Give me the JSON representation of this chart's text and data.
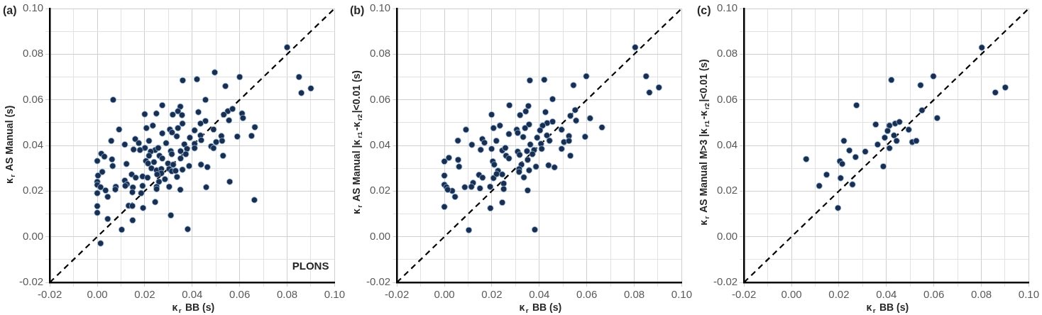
{
  "chart_data": [
    {
      "type": "scatter",
      "title": "(a)",
      "xlabel": "κ$_{r}$ BB (s)",
      "ylabel": "κ$_{r}$ AS Manual (s)",
      "annotations": [
        "PLONS"
      ],
      "xlim": [
        -0.02,
        0.1
      ],
      "ylim": [
        -0.02,
        0.1
      ],
      "xticks": [
        -0.02,
        {
          "value": -0.01,
          "label": null
        },
        {
          "value": 0,
          "label": "0.00"
        },
        {
          "value": 0.01,
          "label": null
        },
        0.02,
        {
          "value": 0.03,
          "label": null
        },
        0.04,
        {
          "value": 0.05,
          "label": null
        },
        0.06,
        {
          "value": 0.07,
          "label": null
        },
        0.08,
        {
          "value": 0.09,
          "label": null
        },
        {
          "value": 0.1,
          "label": "0.10"
        }
      ],
      "yticks": [
        -0.02,
        {
          "value": -0.01,
          "label": null
        },
        {
          "value": 0,
          "label": "0.00"
        },
        {
          "value": 0.01,
          "label": null
        },
        0.02,
        {
          "value": 0.03,
          "label": null
        },
        0.04,
        {
          "value": 0.05,
          "label": null
        },
        0.06,
        {
          "value": 0.07,
          "label": null
        },
        0.08,
        {
          "value": 0.09,
          "label": null
        },
        {
          "value": 0.1,
          "label": "0.10"
        }
      ],
      "grid": true,
      "legend": false,
      "series": [
        {
          "type": "scatter",
          "color": "#1a2e4f",
          "marker": "circle",
          "x": [
            0.08,
            0.085,
            0.086,
            0.09,
            0.0495,
            0.06,
            0.054,
            0.036,
            0.042,
            0.0067,
            0.0456,
            0.0274,
            0.035,
            0.034,
            0.0357,
            0.02,
            0.0249,
            0.0318,
            0.0426,
            0.055,
            0.057,
            0.0533,
            0.061,
            0.0614,
            0.0555,
            0.0456,
            0.0435,
            0.0359,
            0.0234,
            0.0207,
            0.0092,
            0.034,
            0.0306,
            0.0315,
            0.041,
            0.049,
            0.0664,
            0.0274,
            0.0335,
            0.039,
            0.0435,
            0.0438,
            0.0523,
            0.059,
            0.065,
            0.0059,
            0.0218,
            0.0116,
            0.016,
            0.0175,
            0.0201,
            0.0153,
            0.018,
            0.0244,
            0.0257,
            0.029,
            0.0367,
            0.041,
            0.041,
            0.048,
            0.049,
            0.0501,
            0.0526,
            0.0378,
            0.0351,
            0.0373,
            0.031,
            0.0314,
            0.0225,
            0.0218,
            0.0262,
            0.0274,
            0.053,
            0.0017,
            0.003,
            0.0,
            0.0062,
            0.0065,
            0.0123,
            0.0205,
            0.0214,
            0.0239,
            0.0298,
            0.032,
            0.0351,
            0.0387,
            0.0437,
            0.0464,
            0.0021,
            0.0003,
            0.0228,
            0.025,
            0.027,
            0.0303,
            0.0314,
            0.033,
            0.0359,
            0.027,
            0.0252,
            0.0145,
            0.0162,
            0.0191,
            0.0212,
            0.0336,
            0.0285,
            0.026,
            0.0,
            0.0558,
            0.0116,
            0.0125,
            0.0,
            0.0014,
            0.0078,
            0.0118,
            0.015,
            0.0191,
            0.025,
            0.0303,
            0.0459,
            0.0076,
            0.0035,
            0.025,
            0.035,
            0.0,
            0.0185,
            0.0148,
            0.0044,
            0.0662,
            0.0244,
            0.0,
            0.0132,
            0.0148,
            0.0193,
            0.0,
            0.031,
            0.0044,
            0.0149,
            0.0103,
            0.0381,
            0.0014
          ],
          "values": [
            0.083,
            0.07,
            0.063,
            0.065,
            0.072,
            0.07,
            0.066,
            0.0685,
            0.069,
            0.06,
            0.06,
            0.0576,
            0.057,
            0.055,
            0.0533,
            0.0537,
            0.054,
            0.0535,
            0.0546,
            0.055,
            0.056,
            0.0535,
            0.054,
            0.052,
            0.051,
            0.0507,
            0.0496,
            0.0496,
            0.0487,
            0.0476,
            0.047,
            0.0476,
            0.047,
            0.0457,
            0.0466,
            0.047,
            0.048,
            0.0453,
            0.044,
            0.0434,
            0.0444,
            0.0423,
            0.0441,
            0.0439,
            0.0442,
            0.042,
            0.042,
            0.0404,
            0.0428,
            0.041,
            0.0389,
            0.0382,
            0.038,
            0.038,
            0.0389,
            0.041,
            0.0405,
            0.0407,
            0.0388,
            0.0396,
            0.0388,
            0.0415,
            0.042,
            0.0385,
            0.0375,
            0.0362,
            0.0375,
            0.0362,
            0.0373,
            0.0355,
            0.0355,
            0.0343,
            0.0355,
            0.0364,
            0.0351,
            0.0332,
            0.0339,
            0.031,
            0.0319,
            0.0332,
            0.0321,
            0.0327,
            0.0321,
            0.0316,
            0.0343,
            0.031,
            0.0316,
            0.0305,
            0.0284,
            0.0268,
            0.03,
            0.0291,
            0.0297,
            0.0297,
            0.0287,
            0.0289,
            0.0294,
            0.0278,
            0.0273,
            0.0273,
            0.0259,
            0.0264,
            0.0259,
            0.0262,
            0.0252,
            0.0241,
            0.0241,
            0.0241,
            0.0246,
            0.023,
            0.0227,
            0.0217,
            0.0219,
            0.0223,
            0.0216,
            0.0223,
            0.0219,
            0.0219,
            0.0217,
            0.0207,
            0.0203,
            0.0209,
            0.0206,
            0.0191,
            0.0191,
            0.0195,
            0.0175,
            0.0161,
            0.0152,
            0.0134,
            0.0136,
            0.0135,
            0.0126,
            0.0105,
            0.0094,
            0.0078,
            0.0072,
            0.0031,
            0.0033,
            -0.0029
          ]
        },
        {
          "type": "line",
          "color": "#000000",
          "marker": "none",
          "line_style": "dashed",
          "x": [
            -0.02,
            0.1
          ],
          "values": [
            -0.02,
            0.1
          ]
        }
      ]
    },
    {
      "type": "scatter",
      "title": "(b)",
      "xlabel": "κ$_{r}$ BB (s)",
      "ylabel": "κ$_{r}$ AS Manual |κ$_{r1}$-κ$_{r2}$|<0.01 (s)",
      "xlim": [
        -0.02,
        0.1
      ],
      "ylim": [
        -0.02,
        0.1
      ],
      "xticks": [
        -0.02,
        {
          "value": -0.01,
          "label": null
        },
        {
          "value": 0,
          "label": "0.00"
        },
        {
          "value": 0.01,
          "label": null
        },
        0.02,
        {
          "value": 0.03,
          "label": null
        },
        0.04,
        {
          "value": 0.05,
          "label": null
        },
        0.06,
        {
          "value": 0.07,
          "label": null
        },
        0.08,
        {
          "value": 0.09,
          "label": null
        },
        {
          "value": 0.1,
          "label": "0.10"
        }
      ],
      "yticks": [
        -0.02,
        {
          "value": -0.01,
          "label": null
        },
        {
          "value": 0,
          "label": "0.00"
        },
        {
          "value": 0.01,
          "label": null
        },
        0.02,
        {
          "value": 0.03,
          "label": null
        },
        0.04,
        {
          "value": 0.05,
          "label": null
        },
        0.06,
        {
          "value": 0.07,
          "label": null
        },
        0.08,
        {
          "value": 0.09,
          "label": null
        },
        {
          "value": 0.1,
          "label": "0.10"
        }
      ],
      "grid": true,
      "legend": false,
      "series": [
        {
          "type": "scatter",
          "color": "#1a2e4f",
          "marker": "circle",
          "x": [
            0.0804,
            0.085,
            0.0864,
            0.0904,
            0.0598,
            0.0544,
            0.036,
            0.0421,
            0.0456,
            0.0274,
            0.0354,
            0.0343,
            0.0357,
            0.0199,
            0.0319,
            0.0426,
            0.0551,
            0.0531,
            0.0614,
            0.0555,
            0.0456,
            0.0433,
            0.0414,
            0.0234,
            0.0207,
            0.0091,
            0.034,
            0.0305,
            0.0309,
            0.0403,
            0.0494,
            0.0664,
            0.0272,
            0.0332,
            0.0391,
            0.0432,
            0.0443,
            0.0525,
            0.0593,
            0.0057,
            0.0219,
            0.0116,
            0.016,
            0.0169,
            0.0199,
            0.0153,
            0.0244,
            0.0257,
            0.0362,
            0.0407,
            0.041,
            0.0494,
            0.0504,
            0.0525,
            0.0378,
            0.0348,
            0.0371,
            0.0309,
            0.0317,
            0.026,
            0.0272,
            0.0531,
            0.0019,
            0.0,
            0.0058,
            0.0062,
            0.0204,
            0.021,
            0.0325,
            0.0351,
            0.0386,
            0.0439,
            0.0464,
            0.0,
            0.0226,
            0.0315,
            0.0315,
            0.0357,
            0.0244,
            0.0146,
            0.0161,
            0.0207,
            0.0335,
            0.022,
            0.025,
            0.0,
            0.0009,
            0.0086,
            0.0121,
            0.0114,
            0.015,
            0.0193,
            0.025,
            0.0033,
            0.0014,
            0.0351,
            0.0045,
            0.0244,
            0.0,
            0.0194,
            0.0103,
            0.0381
          ],
          "values": [
            0.083,
            0.0703,
            0.0632,
            0.0654,
            0.0703,
            0.0664,
            0.0685,
            0.0688,
            0.0603,
            0.0576,
            0.0573,
            0.0549,
            0.0492,
            0.0535,
            0.0533,
            0.0546,
            0.0555,
            0.053,
            0.0519,
            0.0509,
            0.0504,
            0.0498,
            0.0487,
            0.0487,
            0.0476,
            0.0469,
            0.0476,
            0.0469,
            0.0455,
            0.0466,
            0.0469,
            0.0479,
            0.045,
            0.0437,
            0.0434,
            0.0444,
            0.0421,
            0.0441,
            0.0438,
            0.0421,
            0.042,
            0.0403,
            0.0428,
            0.0412,
            0.0385,
            0.0381,
            0.0378,
            0.0389,
            0.0404,
            0.0407,
            0.0385,
            0.0385,
            0.0415,
            0.042,
            0.038,
            0.0375,
            0.0362,
            0.0373,
            0.0359,
            0.0355,
            0.0343,
            0.0355,
            0.0346,
            0.033,
            0.0337,
            0.0307,
            0.033,
            0.0316,
            0.0316,
            0.0337,
            0.0307,
            0.0313,
            0.0304,
            0.0268,
            0.0289,
            0.0297,
            0.0284,
            0.0291,
            0.0273,
            0.0271,
            0.0259,
            0.0257,
            0.026,
            0.0275,
            0.0233,
            0.0228,
            0.0217,
            0.0217,
            0.0236,
            0.0219,
            0.0212,
            0.0219,
            0.0209,
            0.0201,
            0.0206,
            0.0203,
            0.0175,
            0.015,
            0.0131,
            0.0125,
            0.0029,
            0.0031
          ]
        },
        {
          "type": "line",
          "color": "#000000",
          "marker": "none",
          "line_style": "dashed",
          "x": [
            -0.02,
            0.1
          ],
          "values": [
            -0.02,
            0.1
          ]
        }
      ]
    },
    {
      "type": "scatter",
      "title": "(c)",
      "xlabel": "κ$_{r}$ BB (s)",
      "ylabel": "κ$_{r}$ AS Manual M>3 |κ$_{r1}$-κ$_{r2}$|<0.01 (s)",
      "xlim": [
        -0.02,
        0.1
      ],
      "ylim": [
        -0.02,
        0.1
      ],
      "xticks": [
        -0.02,
        {
          "value": -0.01,
          "label": null
        },
        {
          "value": 0,
          "label": "0.00"
        },
        {
          "value": 0.01,
          "label": null
        },
        0.02,
        {
          "value": 0.03,
          "label": null
        },
        0.04,
        {
          "value": 0.05,
          "label": null
        },
        0.06,
        {
          "value": 0.07,
          "label": null
        },
        0.08,
        {
          "value": 0.09,
          "label": null
        },
        {
          "value": 0.1,
          "label": "0.10"
        }
      ],
      "yticks": [
        -0.02,
        {
          "value": -0.01,
          "label": null
        },
        {
          "value": 0,
          "label": "0.00"
        },
        {
          "value": 0.01,
          "label": null
        },
        0.02,
        {
          "value": 0.03,
          "label": null
        },
        0.04,
        {
          "value": 0.05,
          "label": null
        },
        0.06,
        {
          "value": 0.07,
          "label": null
        },
        0.08,
        {
          "value": 0.09,
          "label": null
        },
        {
          "value": 0.1,
          "label": "0.10"
        }
      ],
      "grid": true,
      "legend": false,
      "series": [
        {
          "type": "scatter",
          "color": "#1a2e4f",
          "marker": "circle",
          "x": [
            0.0802,
            0.0859,
            0.0901,
            0.0598,
            0.0544,
            0.0421,
            0.0274,
            0.0355,
            0.0413,
            0.0437,
            0.0455,
            0.0405,
            0.0494,
            0.055,
            0.0614,
            0.0393,
            0.0432,
            0.0443,
            0.0509,
            0.0526,
            0.0221,
            0.0363,
            0.0413,
            0.0244,
            0.0311,
            0.027,
            0.0062,
            0.0204,
            0.0214,
            0.0387,
            0.0148,
            0.0207,
            0.0257,
            0.0117,
            0.0196
          ],
          "values": [
            0.0829,
            0.0632,
            0.0654,
            0.0703,
            0.0664,
            0.0687,
            0.0576,
            0.0492,
            0.0487,
            0.0496,
            0.0503,
            0.0464,
            0.0469,
            0.0554,
            0.052,
            0.0434,
            0.0444,
            0.042,
            0.0415,
            0.042,
            0.042,
            0.0404,
            0.0388,
            0.0378,
            0.0373,
            0.0349,
            0.034,
            0.0331,
            0.0319,
            0.0308,
            0.0272,
            0.0257,
            0.0229,
            0.0223,
            0.0126
          ]
        },
        {
          "type": "line",
          "color": "#000000",
          "marker": "none",
          "line_style": "dashed",
          "x": [
            -0.02,
            0.1
          ],
          "values": [
            -0.02,
            0.1
          ]
        }
      ]
    }
  ]
}
